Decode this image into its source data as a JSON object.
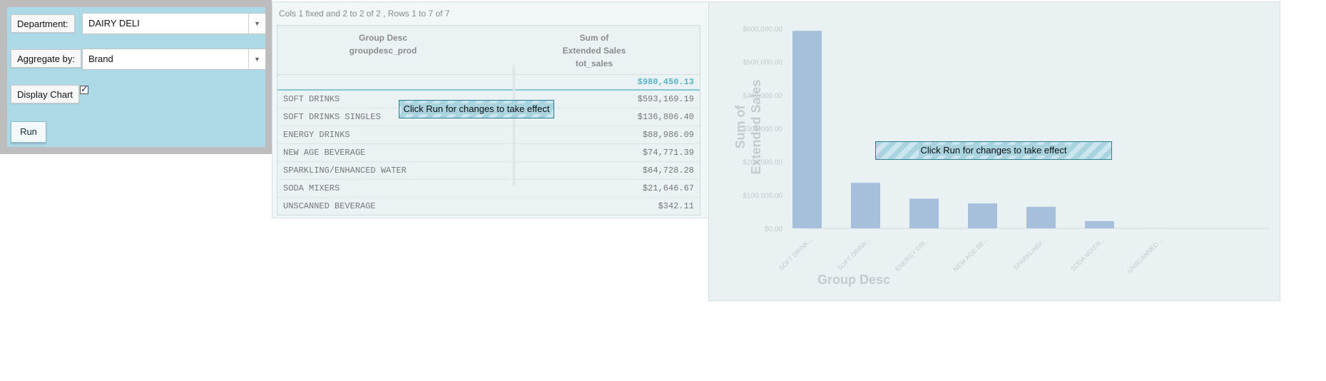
{
  "controls": {
    "department_label": "Department:",
    "department_value": "DAIRY DELI",
    "aggregate_label": "Aggregate by:",
    "aggregate_value": "Brand",
    "display_chart_label": "Display Chart",
    "display_chart_checked": true,
    "run_label": "Run"
  },
  "table": {
    "status": "Cols 1 fixed and 2 to 2 of 2 , Rows 1 to 7 of 7",
    "col1_line1": "Group Desc",
    "col1_line2": "groupdesc_prod",
    "col2_line1": "Sum of",
    "col2_line2": "Extended Sales",
    "col2_line3": "tot_sales",
    "total": "$980,450.13",
    "rows": [
      {
        "name": "SOFT DRINKS",
        "amount": "$593,169.19"
      },
      {
        "name": "SOFT DRINKS SINGLES",
        "amount": "$136,806.40"
      },
      {
        "name": "ENERGY DRINKS",
        "amount": "$88,986.09"
      },
      {
        "name": "NEW AGE BEVERAGE",
        "amount": "$74,771.39"
      },
      {
        "name": "SPARKLING/ENHANCED WATER",
        "amount": "$64,728.28"
      },
      {
        "name": "SODA MIXERS",
        "amount": "$21,646.67"
      },
      {
        "name": "UNSCANNED BEVERAGE",
        "amount": "$342.11"
      }
    ],
    "notice": "Click Run for changes to take effect"
  },
  "chart_notice": "Click Run for changes to take effect",
  "colors": {
    "bar": "#a6c0dc",
    "axis_text": "#c3cbd0",
    "panel": "#add8e6"
  },
  "chart_data": {
    "type": "bar",
    "xlabel": "Group Desc",
    "ylabel_line1": "Sum of",
    "ylabel_line2": "Extended Sales",
    "categories": [
      "SOFT DRINK...",
      "SOFT DRINK...",
      "ENERGY DRI...",
      "NEW AGE BE...",
      "SPARKLING/...",
      "SODA MIXER...",
      "UNSCANNED ..."
    ],
    "values": [
      593169.19,
      136806.4,
      88986.09,
      74771.39,
      64728.28,
      21646.67,
      342.11
    ],
    "yticks": [
      "$0.00",
      "$100,000.00",
      "$200,000.00",
      "$300,000.00",
      "$400,000.00",
      "$500,000.00",
      "$600,000.00"
    ],
    "ylim": [
      0,
      600000
    ],
    "grid": false
  }
}
